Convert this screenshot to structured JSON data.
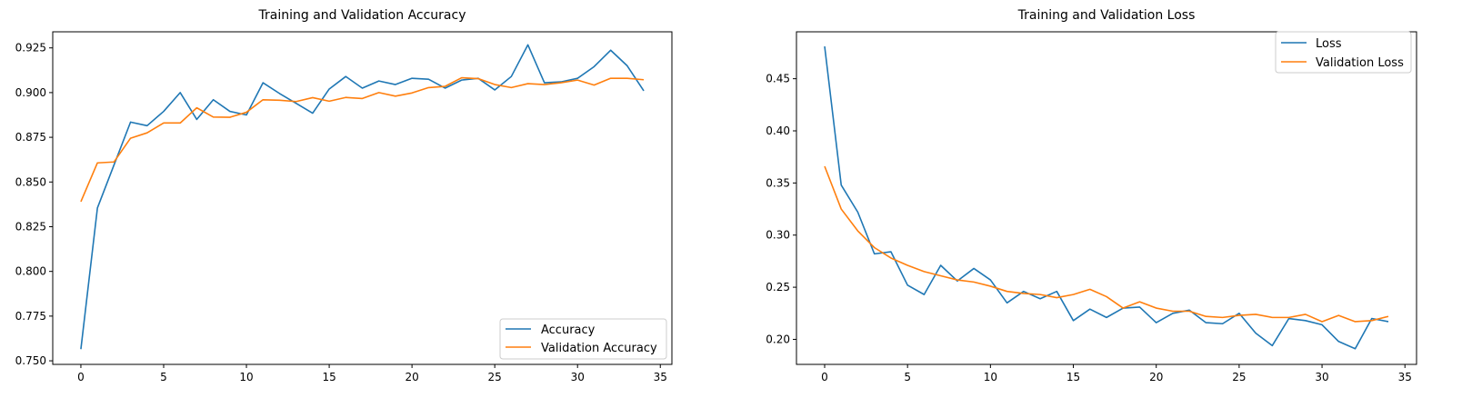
{
  "chart_data": [
    {
      "type": "line",
      "title": "Training and Validation Accuracy",
      "xlabel": "",
      "ylabel": "",
      "xlim": [
        -1.7,
        35.7
      ],
      "ylim": [
        0.748,
        0.934
      ],
      "xticks": [
        0,
        5,
        10,
        15,
        20,
        25,
        30,
        35
      ],
      "yticks": [
        0.75,
        0.775,
        0.8,
        0.825,
        0.85,
        0.875,
        0.9,
        0.925
      ],
      "grid": false,
      "legend_position": "lower-right",
      "x": [
        0,
        1,
        2,
        3,
        4,
        5,
        6,
        7,
        8,
        9,
        10,
        11,
        12,
        13,
        14,
        15,
        16,
        17,
        18,
        19,
        20,
        21,
        22,
        23,
        24,
        25,
        26,
        27,
        28,
        29,
        30,
        31,
        32,
        33,
        34
      ],
      "series": [
        {
          "name": "Accuracy",
          "color": "#1f77b4",
          "values": [
            0.7565,
            0.8355,
            0.8595,
            0.8835,
            0.8815,
            0.8895,
            0.9,
            0.885,
            0.896,
            0.8895,
            0.8875,
            0.9055,
            0.8995,
            0.894,
            0.8885,
            0.902,
            0.909,
            0.9025,
            0.9065,
            0.9045,
            0.908,
            0.9075,
            0.9025,
            0.907,
            0.908,
            0.9015,
            0.909,
            0.9267,
            0.9055,
            0.906,
            0.908,
            0.9145,
            0.9237,
            0.915,
            0.901
          ]
        },
        {
          "name": "Validation Accuracy",
          "color": "#ff7f0e",
          "values": [
            0.839,
            0.8607,
            0.8612,
            0.8745,
            0.8775,
            0.883,
            0.883,
            0.8915,
            0.8863,
            0.8862,
            0.889,
            0.896,
            0.8957,
            0.895,
            0.8972,
            0.8952,
            0.8973,
            0.8967,
            0.9,
            0.898,
            0.8998,
            0.9028,
            0.9035,
            0.9083,
            0.9078,
            0.9045,
            0.9028,
            0.905,
            0.9045,
            0.9055,
            0.907,
            0.9042,
            0.908,
            0.908,
            0.9072
          ]
        }
      ]
    },
    {
      "type": "line",
      "title": "Training and Validation Loss",
      "xlabel": "",
      "ylabel": "",
      "xlim": [
        -1.7,
        35.7
      ],
      "ylim": [
        0.176,
        0.495
      ],
      "xticks": [
        0,
        5,
        10,
        15,
        20,
        25,
        30,
        35
      ],
      "yticks": [
        0.2,
        0.25,
        0.3,
        0.35,
        0.4,
        0.45
      ],
      "grid": false,
      "legend_position": "upper-right",
      "x": [
        0,
        1,
        2,
        3,
        4,
        5,
        6,
        7,
        8,
        9,
        10,
        11,
        12,
        13,
        14,
        15,
        16,
        17,
        18,
        19,
        20,
        21,
        22,
        23,
        24,
        25,
        26,
        27,
        28,
        29,
        30,
        31,
        32,
        33,
        34
      ],
      "series": [
        {
          "name": "Loss",
          "color": "#1f77b4",
          "values": [
            0.481,
            0.348,
            0.322,
            0.282,
            0.284,
            0.252,
            0.243,
            0.271,
            0.256,
            0.268,
            0.257,
            0.235,
            0.246,
            0.239,
            0.246,
            0.218,
            0.229,
            0.221,
            0.23,
            0.231,
            0.216,
            0.225,
            0.228,
            0.216,
            0.215,
            0.225,
            0.206,
            0.194,
            0.22,
            0.218,
            0.214,
            0.198,
            0.191,
            0.22,
            0.217
          ]
        },
        {
          "name": "Validation Loss",
          "color": "#ff7f0e",
          "values": [
            0.366,
            0.325,
            0.304,
            0.288,
            0.278,
            0.271,
            0.265,
            0.261,
            0.257,
            0.255,
            0.251,
            0.246,
            0.244,
            0.243,
            0.24,
            0.243,
            0.248,
            0.241,
            0.23,
            0.236,
            0.23,
            0.227,
            0.227,
            0.222,
            0.221,
            0.223,
            0.224,
            0.221,
            0.221,
            0.224,
            0.217,
            0.223,
            0.217,
            0.218,
            0.222
          ]
        }
      ]
    }
  ]
}
